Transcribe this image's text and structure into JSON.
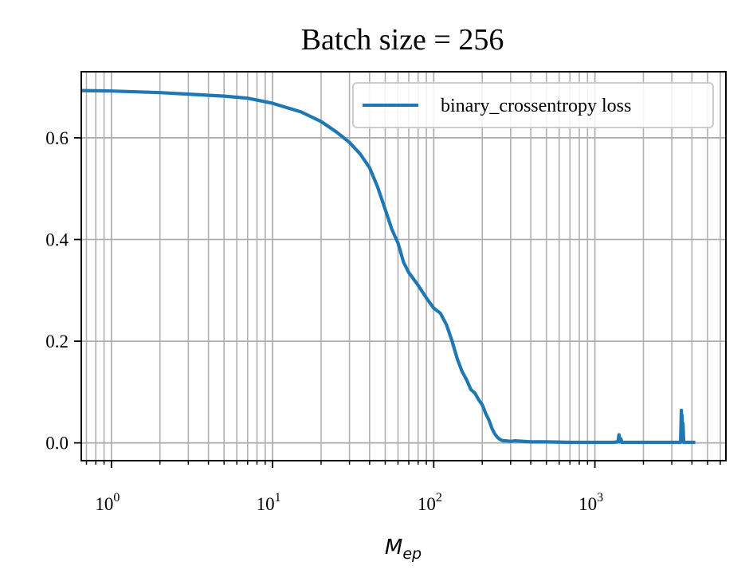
{
  "chart_data": {
    "type": "line",
    "title": "Batch size = 256",
    "xlabel": "M",
    "xlabel_subscript": "ep",
    "ylabel": "",
    "xscale": "log",
    "xlim": [
      0.65,
      6500
    ],
    "ylim": [
      -0.035,
      0.73
    ],
    "grid": true,
    "grid_minor": true,
    "legend_position": "top-right",
    "x_ticks": [
      {
        "value": 1,
        "base": "10",
        "exp": "0"
      },
      {
        "value": 10,
        "base": "10",
        "exp": "1"
      },
      {
        "value": 100,
        "base": "10",
        "exp": "2"
      },
      {
        "value": 1000,
        "base": "10",
        "exp": "3"
      }
    ],
    "y_ticks": [
      {
        "value": 0.0,
        "label": "0.0"
      },
      {
        "value": 0.2,
        "label": "0.2"
      },
      {
        "value": 0.4,
        "label": "0.4"
      },
      {
        "value": 0.6,
        "label": "0.6"
      }
    ],
    "series": [
      {
        "name": "binary_crossentropy loss",
        "color": "#1f77b4",
        "x": [
          0.65,
          1,
          2,
          3,
          5,
          7,
          10,
          15,
          20,
          25,
          30,
          35,
          40,
          45,
          50,
          55,
          60,
          65,
          70,
          80,
          90,
          100,
          110,
          120,
          130,
          140,
          150,
          160,
          170,
          180,
          190,
          200,
          210,
          220,
          230,
          240,
          250,
          260,
          270,
          280,
          300,
          320,
          400,
          500,
          700,
          1000,
          1300,
          1390,
          1410,
          1430,
          1450,
          1470,
          1500,
          2000,
          2500,
          3000,
          3400,
          3440,
          3460,
          3480,
          3500,
          3520,
          3560,
          3700,
          4200
        ],
        "y": [
          0.693,
          0.692,
          0.689,
          0.686,
          0.682,
          0.678,
          0.668,
          0.651,
          0.632,
          0.611,
          0.591,
          0.568,
          0.541,
          0.502,
          0.459,
          0.42,
          0.393,
          0.355,
          0.335,
          0.31,
          0.285,
          0.265,
          0.255,
          0.232,
          0.2,
          0.165,
          0.14,
          0.124,
          0.105,
          0.098,
          0.085,
          0.075,
          0.058,
          0.045,
          0.028,
          0.017,
          0.01,
          0.006,
          0.004,
          0.004,
          0.003,
          0.004,
          0.002,
          0.002,
          0.001,
          0.001,
          0.001,
          0.002,
          0.016,
          0.002,
          0.008,
          0.001,
          0.001,
          0.001,
          0.001,
          0.001,
          0.001,
          0.064,
          0.005,
          0.054,
          0.002,
          0.038,
          0.001,
          0.001,
          0.001
        ]
      }
    ]
  }
}
